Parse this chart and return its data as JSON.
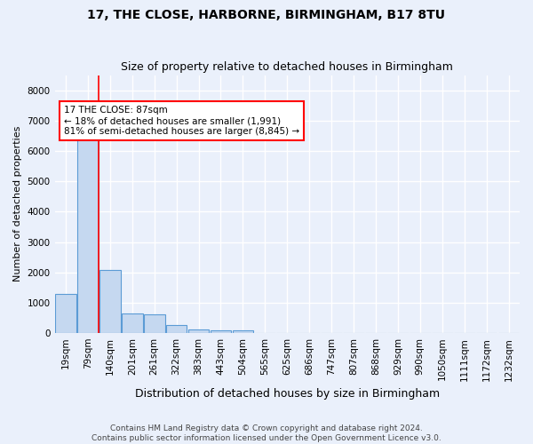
{
  "title": "17, THE CLOSE, HARBORNE, BIRMINGHAM, B17 8TU",
  "subtitle": "Size of property relative to detached houses in Birmingham",
  "xlabel": "Distribution of detached houses by size in Birmingham",
  "ylabel": "Number of detached properties",
  "footer_line1": "Contains HM Land Registry data © Crown copyright and database right 2024.",
  "footer_line2": "Contains public sector information licensed under the Open Government Licence v3.0.",
  "categories": [
    "19sqm",
    "79sqm",
    "140sqm",
    "201sqm",
    "261sqm",
    "322sqm",
    "383sqm",
    "443sqm",
    "504sqm",
    "565sqm",
    "625sqm",
    "686sqm",
    "747sqm",
    "807sqm",
    "868sqm",
    "929sqm",
    "990sqm",
    "1050sqm",
    "1111sqm",
    "1172sqm",
    "1232sqm"
  ],
  "bar_values": [
    1300,
    6550,
    2080,
    650,
    620,
    260,
    130,
    100,
    75,
    0,
    0,
    0,
    0,
    0,
    0,
    0,
    0,
    0,
    0,
    0,
    0
  ],
  "bar_color": "#c5d8f0",
  "bar_edge_color": "#5b9bd5",
  "annotation_text_line1": "17 THE CLOSE: 87sqm",
  "annotation_text_line2": "← 18% of detached houses are smaller (1,991)",
  "annotation_text_line3": "81% of semi-detached houses are larger (8,845) →",
  "red_line_x": 1.48,
  "ylim": [
    0,
    8500
  ],
  "yticks": [
    0,
    1000,
    2000,
    3000,
    4000,
    5000,
    6000,
    7000,
    8000
  ],
  "background_color": "#eaf0fb",
  "plot_bg_color": "#eaf0fb",
  "grid_color": "#ffffff",
  "title_fontsize": 10,
  "subtitle_fontsize": 9,
  "ylabel_fontsize": 8,
  "xlabel_fontsize": 9,
  "tick_fontsize": 7.5,
  "footer_fontsize": 6.5,
  "ann_fontsize": 7.5
}
